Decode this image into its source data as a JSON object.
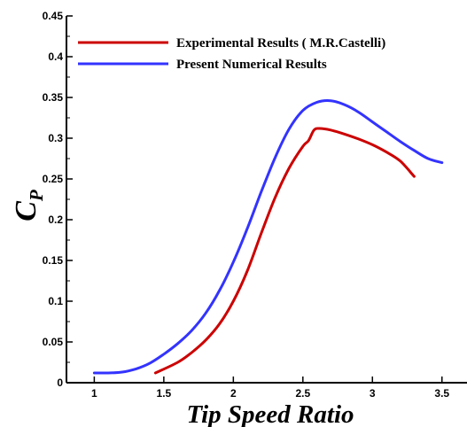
{
  "chart_data": {
    "type": "line",
    "xlabel": "Tip Speed Ratio",
    "ylabel": "C",
    "ylabel_subscript": "P",
    "xlim": [
      0.8,
      3.68
    ],
    "ylim": [
      0,
      0.45
    ],
    "x_ticks": [
      1,
      1.5,
      2,
      2.5,
      3,
      3.5
    ],
    "x_tick_labels": [
      "1",
      "1.5",
      "2",
      "2.5",
      "3",
      "3.5"
    ],
    "y_ticks": [
      0,
      0.05,
      0.1,
      0.15,
      0.2,
      0.25,
      0.3,
      0.35,
      0.4,
      0.45
    ],
    "y_tick_labels": [
      "0",
      "0.05",
      "0.1",
      "0.15",
      "0.2",
      "0.25",
      "0.3",
      "0.35",
      "0.4",
      "0.45"
    ],
    "grid": false,
    "legend_position": "top-left",
    "series": [
      {
        "name": "Experimental Results ( M.R.Castelli)",
        "color": "#cc0000",
        "x": [
          1.44,
          1.6,
          1.7,
          1.8,
          1.9,
          2.0,
          2.1,
          2.2,
          2.3,
          2.4,
          2.5,
          2.54,
          2.58,
          2.62,
          2.7,
          2.8,
          2.9,
          3.0,
          3.1,
          3.2,
          3.3
        ],
        "y": [
          0.012,
          0.025,
          0.037,
          0.052,
          0.072,
          0.1,
          0.137,
          0.183,
          0.227,
          0.263,
          0.29,
          0.297,
          0.31,
          0.312,
          0.31,
          0.305,
          0.299,
          0.292,
          0.283,
          0.272,
          0.253
        ]
      },
      {
        "name": "Present Numerical Results",
        "color": "#3333ff",
        "x": [
          1.0,
          1.1,
          1.2,
          1.3,
          1.4,
          1.5,
          1.6,
          1.7,
          1.8,
          1.9,
          2.0,
          2.1,
          2.2,
          2.3,
          2.4,
          2.5,
          2.6,
          2.7,
          2.8,
          2.9,
          3.0,
          3.1,
          3.2,
          3.3,
          3.4,
          3.5
        ],
        "y": [
          0.012,
          0.012,
          0.013,
          0.017,
          0.024,
          0.035,
          0.048,
          0.064,
          0.085,
          0.113,
          0.148,
          0.189,
          0.234,
          0.276,
          0.311,
          0.334,
          0.344,
          0.346,
          0.341,
          0.332,
          0.32,
          0.308,
          0.296,
          0.285,
          0.275,
          0.27
        ]
      }
    ]
  }
}
